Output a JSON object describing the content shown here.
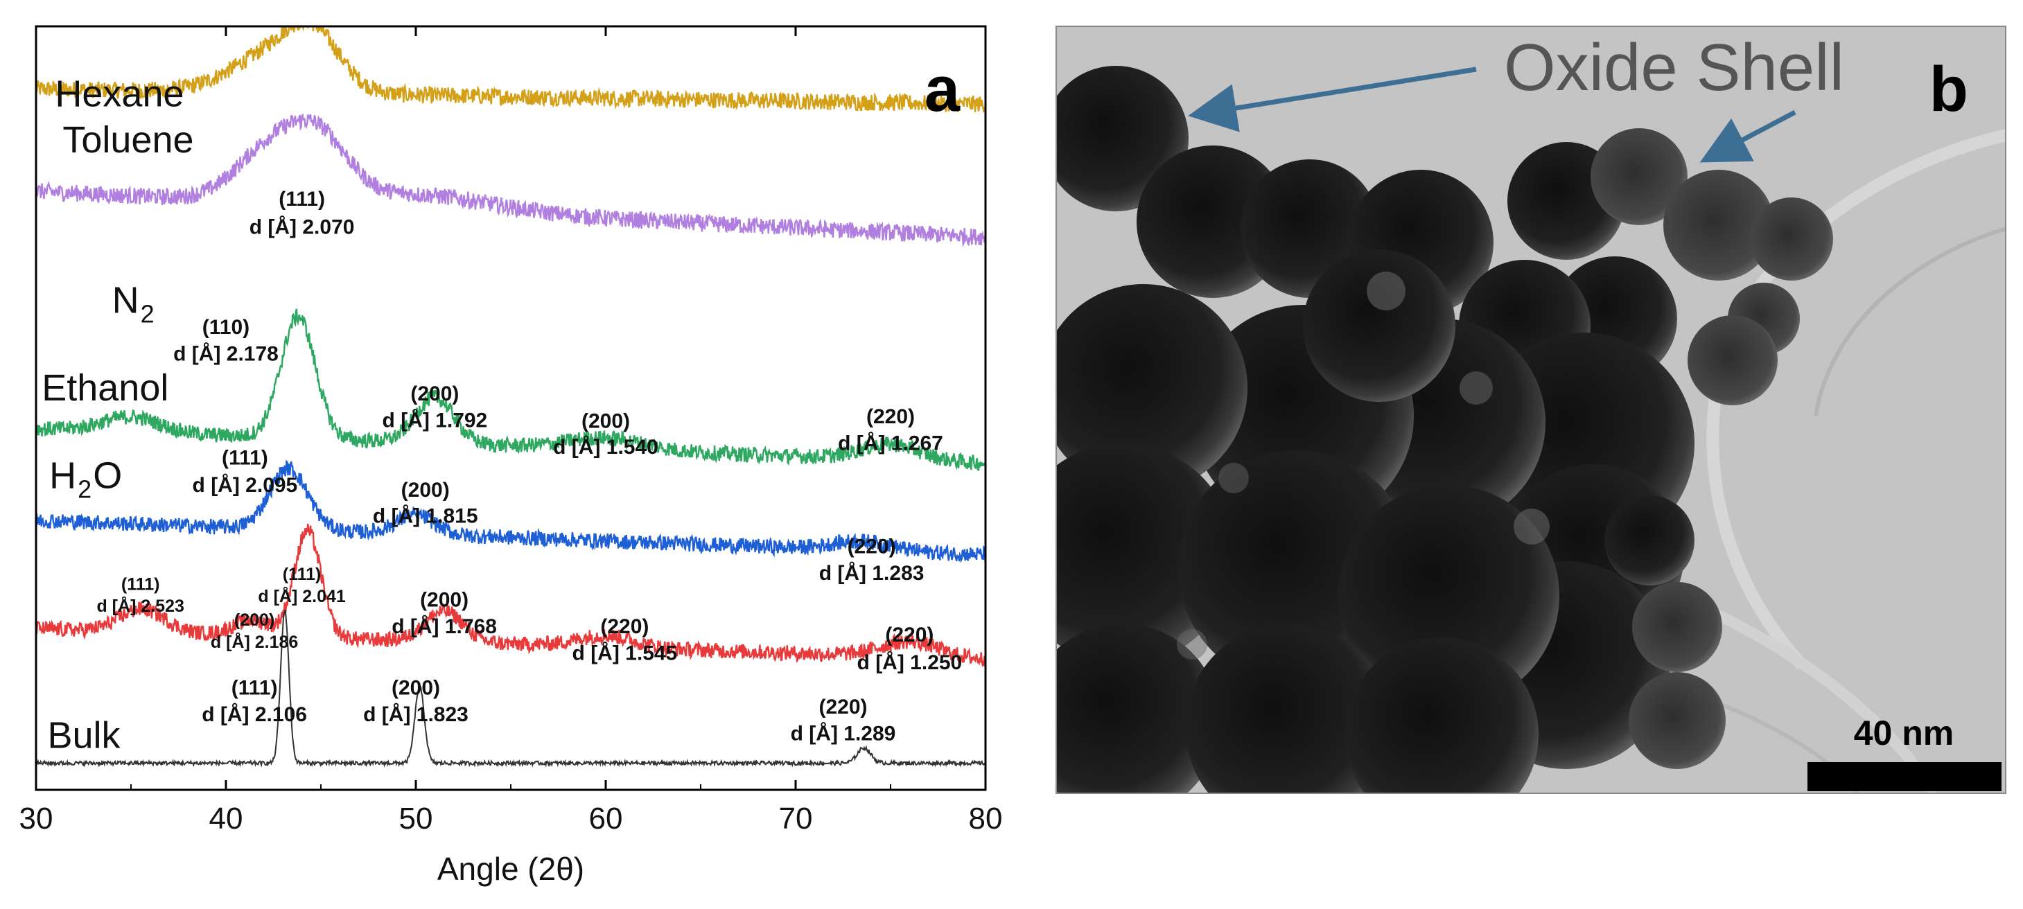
{
  "chart_data": {
    "type": "line",
    "panel_label": "a",
    "xlabel": "Angle (2θ)",
    "ylabel": "",
    "xlim": [
      30,
      80
    ],
    "xticks": [
      30,
      40,
      50,
      60,
      70,
      80
    ],
    "grid": false,
    "series": [
      {
        "name": "Hexane",
        "label_main": "Hexane",
        "label_sub": "",
        "color": "#D4A017",
        "baseline": 0.91,
        "noise": 0.011,
        "slope": 0.0004,
        "peaks": [
          {
            "x": 42.5,
            "h": 0.05,
            "w": 2.2
          },
          {
            "x": 44.6,
            "h": 0.06,
            "w": 1.4
          }
        ],
        "annotations": []
      },
      {
        "name": "Toluene",
        "label_main": "Toluene",
        "label_sub": "",
        "color": "#B07FE0",
        "baseline": 0.76,
        "noise": 0.011,
        "slope": 0.0012,
        "peaks": [
          {
            "x": 42.4,
            "h": 0.07,
            "w": 1.8
          },
          {
            "x": 45.0,
            "h": 0.07,
            "w": 1.5
          },
          {
            "x": 50.0,
            "h": 0.02,
            "w": 4.0
          }
        ],
        "annotations": [
          {
            "hkl": "(111)",
            "d": "d [Å] 2.070",
            "x": 44.0,
            "size": "normal"
          }
        ]
      },
      {
        "name": "N2",
        "label_main": "N",
        "label_sub": "2",
        "color": "#2EA860",
        "baseline": 0.455,
        "noise": 0.01,
        "slope": 0.0009,
        "peaks": [
          {
            "x": 35.0,
            "h": 0.02,
            "w": 1.5
          },
          {
            "x": 43.8,
            "h": 0.16,
            "w": 0.9
          },
          {
            "x": 51.0,
            "h": 0.06,
            "w": 1.0
          },
          {
            "x": 60.0,
            "h": 0.015,
            "w": 2.0
          },
          {
            "x": 75.0,
            "h": 0.02,
            "w": 1.5
          }
        ],
        "annotations": [
          {
            "hkl": "(110)",
            "d": "d [Å] 2.178",
            "x": 40.0,
            "size": "normal"
          },
          {
            "hkl": "(200)",
            "d": "d [Å] 1.792",
            "x": 51.0,
            "size": "normal"
          },
          {
            "hkl": "(200)",
            "d": "d [Å] 1.540",
            "x": 60.0,
            "size": "normal"
          },
          {
            "hkl": "(220)",
            "d": "d [Å] 1.267",
            "x": 75.0,
            "size": "normal"
          }
        ]
      },
      {
        "name": "Ethanol",
        "label_main": "Ethanol",
        "label_sub": "",
        "color": "#1F5FD6",
        "baseline": 0.335,
        "noise": 0.01,
        "slope": 0.0009,
        "peaks": [
          {
            "x": 43.3,
            "h": 0.08,
            "w": 1.0
          },
          {
            "x": 50.0,
            "h": 0.025,
            "w": 1.0
          },
          {
            "x": 73.5,
            "h": 0.012,
            "w": 1.5
          }
        ],
        "annotations": [
          {
            "hkl": "(111)",
            "d": "d [Å] 2.095",
            "x": 41.0,
            "size": "normal"
          },
          {
            "hkl": "(200)",
            "d": "d [Å] 1.815",
            "x": 50.5,
            "size": "normal"
          },
          {
            "hkl": "(220)",
            "d": "d [Å] 1.283",
            "x": 74.0,
            "size": "normal"
          }
        ]
      },
      {
        "name": "H2O",
        "label_main": "H",
        "label_sub": "2",
        "label_tail": "O",
        "color": "#E83A3A",
        "baseline": 0.195,
        "noise": 0.01,
        "slope": 0.0008,
        "peaks": [
          {
            "x": 35.6,
            "h": 0.03,
            "w": 1.2
          },
          {
            "x": 41.4,
            "h": 0.02,
            "w": 1.0
          },
          {
            "x": 44.3,
            "h": 0.14,
            "w": 0.7
          },
          {
            "x": 51.5,
            "h": 0.04,
            "w": 1.0
          },
          {
            "x": 60.0,
            "h": 0.015,
            "w": 1.5
          },
          {
            "x": 76.0,
            "h": 0.02,
            "w": 1.5
          }
        ],
        "annotations": [
          {
            "hkl": "(111)",
            "d": "d [Å] 2.523",
            "x": 35.5,
            "size": "small"
          },
          {
            "hkl": "(111)",
            "d": "d [Å] 2.041",
            "x": 44.0,
            "size": "small"
          },
          {
            "hkl": "(200)",
            "d": "d [Å] 2.186",
            "x": 41.5,
            "size": "small"
          },
          {
            "hkl": "(200)",
            "d": "d [Å] 1.768",
            "x": 51.5,
            "size": "normal"
          },
          {
            "hkl": "(220)",
            "d": "d [Å] 1.545",
            "x": 61.0,
            "size": "normal"
          },
          {
            "hkl": "(220)",
            "d": "d [Å] 1.250",
            "x": 76.0,
            "size": "normal"
          }
        ]
      },
      {
        "name": "Bulk",
        "label_main": "Bulk",
        "label_sub": "",
        "color": "#333333",
        "baseline": 0.035,
        "noise": 0.0025,
        "slope": 0,
        "peaks": [
          {
            "x": 43.1,
            "h": 0.2,
            "w": 0.22
          },
          {
            "x": 50.2,
            "h": 0.1,
            "w": 0.25
          },
          {
            "x": 73.6,
            "h": 0.02,
            "w": 0.35
          }
        ],
        "annotations": [
          {
            "hkl": "(111)",
            "d": "d [Å] 2.106",
            "x": 41.5,
            "size": "normal"
          },
          {
            "hkl": "(200)",
            "d": "d [Å] 1.823",
            "x": 50.0,
            "size": "normal"
          },
          {
            "hkl": "(220)",
            "d": "d [Å] 1.289",
            "x": 72.5,
            "size": "normal"
          }
        ]
      }
    ]
  },
  "tem": {
    "panel_label": "b",
    "annotation": "Oxide Shell",
    "scale_bar_label": "40 nm",
    "background_color": "#c2c2c2",
    "particle_color": "#1a1a1a",
    "arrow_color": "#3d6e94"
  }
}
